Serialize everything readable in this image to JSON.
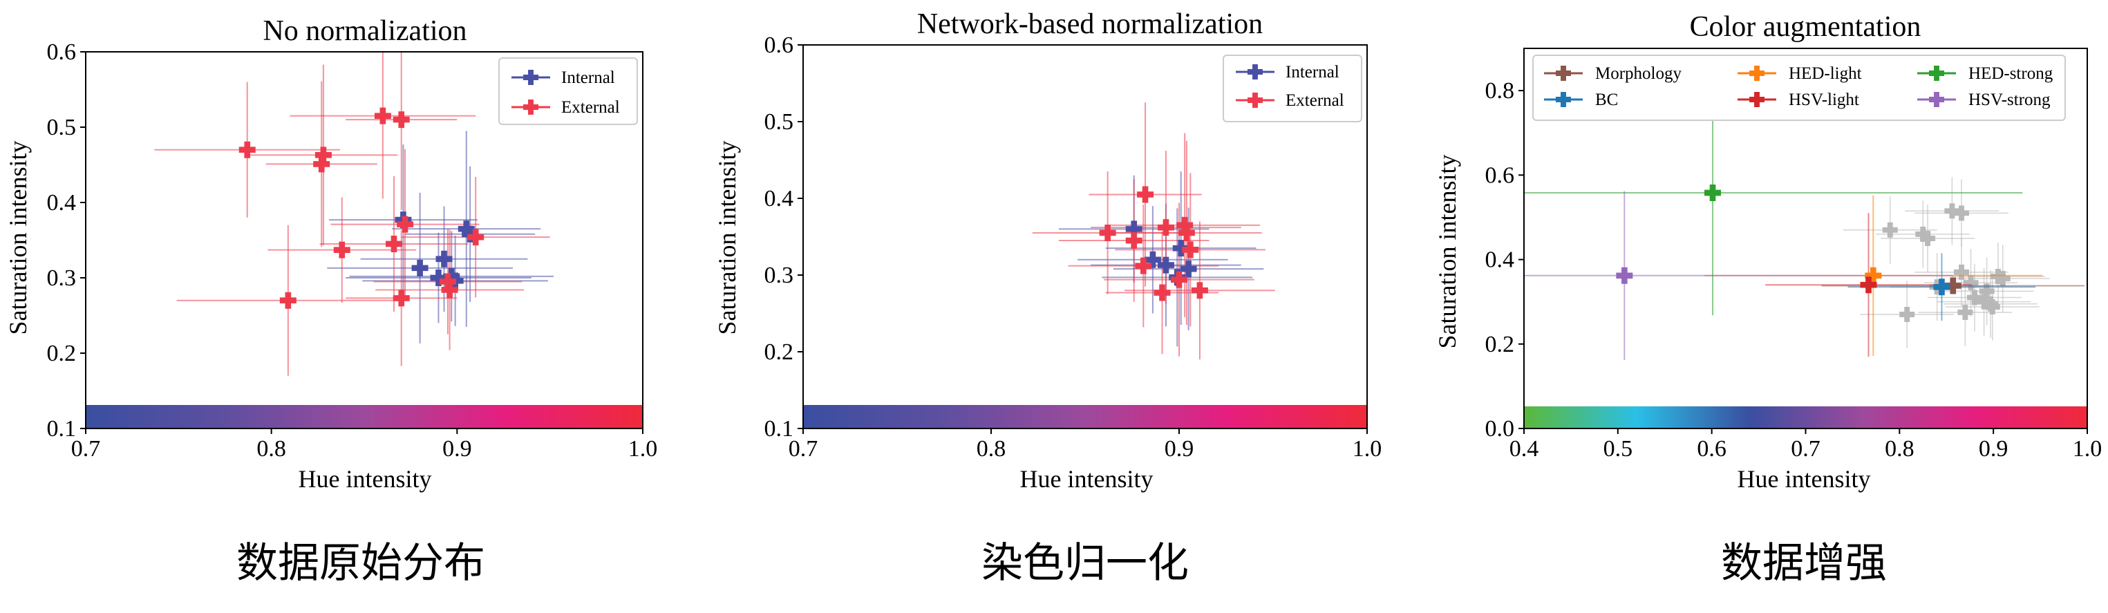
{
  "colors": {
    "internal": "#4a4fa6",
    "external": "#ee3b4c",
    "morphology": "#8c564b",
    "bc": "#1f77b4",
    "hed_light": "#ff7f0e",
    "hsv_light": "#d62728",
    "hed_strong": "#2ca02c",
    "hsv_strong": "#9467bd",
    "background_points": "#b8b8b8",
    "hue_strip_stops": [
      "#3a4fa0",
      "#5f4fa0",
      "#9d4a9c",
      "#e61e7f",
      "#ef2a3a"
    ],
    "wide_hue_strip_stops": [
      "#5cb83a",
      "#2bbfe6",
      "#3a4fa0",
      "#9d4a9c",
      "#e61e7f",
      "#ef2a3a"
    ]
  },
  "captions": [
    "数据原始分布",
    "染色归一化",
    "数据增强"
  ],
  "chart_data": [
    {
      "type": "scatter",
      "title": "No normalization",
      "xlabel": "Hue intensity",
      "ylabel": "Saturation intensity",
      "xlim": [
        0.7,
        1.0
      ],
      "ylim": [
        0.1,
        0.6
      ],
      "xticks": [
        "0.7",
        "0.8",
        "0.9",
        "1.0"
      ],
      "yticks": [
        "0.1",
        "0.2",
        "0.3",
        "0.4",
        "0.5",
        "0.6"
      ],
      "color_strip": "hue",
      "legend": "top-right",
      "grid": false,
      "series": [
        {
          "name": "Internal",
          "color_key": "internal",
          "points": [
            {
              "x": 0.871,
              "y": 0.377,
              "xerr": 0.04,
              "yerr": 0.1
            },
            {
              "x": 0.905,
              "y": 0.365,
              "xerr": 0.04,
              "yerr": 0.13
            },
            {
              "x": 0.907,
              "y": 0.358,
              "xerr": 0.035,
              "yerr": 0.09
            },
            {
              "x": 0.893,
              "y": 0.325,
              "xerr": 0.045,
              "yerr": 0.07
            },
            {
              "x": 0.88,
              "y": 0.313,
              "xerr": 0.05,
              "yerr": 0.1
            },
            {
              "x": 0.89,
              "y": 0.3,
              "xerr": 0.05,
              "yerr": 0.06
            },
            {
              "x": 0.897,
              "y": 0.302,
              "xerr": 0.055,
              "yerr": 0.06
            },
            {
              "x": 0.899,
              "y": 0.296,
              "xerr": 0.05,
              "yerr": 0.06
            }
          ]
        },
        {
          "name": "External",
          "color_key": "external",
          "points": [
            {
              "x": 0.787,
              "y": 0.47,
              "xerr": 0.05,
              "yerr": 0.09
            },
            {
              "x": 0.828,
              "y": 0.463,
              "xerr": 0.04,
              "yerr": 0.12
            },
            {
              "x": 0.827,
              "y": 0.451,
              "xerr": 0.03,
              "yerr": 0.11
            },
            {
              "x": 0.86,
              "y": 0.515,
              "xerr": 0.05,
              "yerr": 0.11
            },
            {
              "x": 0.87,
              "y": 0.51,
              "xerr": 0.03,
              "yerr": 0.12
            },
            {
              "x": 0.872,
              "y": 0.371,
              "xerr": 0.04,
              "yerr": 0.1
            },
            {
              "x": 0.91,
              "y": 0.354,
              "xerr": 0.04,
              "yerr": 0.08
            },
            {
              "x": 0.866,
              "y": 0.345,
              "xerr": 0.04,
              "yerr": 0.09
            },
            {
              "x": 0.838,
              "y": 0.337,
              "xerr": 0.04,
              "yerr": 0.07
            },
            {
              "x": 0.895,
              "y": 0.295,
              "xerr": 0.04,
              "yerr": 0.07
            },
            {
              "x": 0.896,
              "y": 0.284,
              "xerr": 0.04,
              "yerr": 0.08
            },
            {
              "x": 0.87,
              "y": 0.273,
              "xerr": 0.03,
              "yerr": 0.09
            },
            {
              "x": 0.809,
              "y": 0.27,
              "xerr": 0.06,
              "yerr": 0.1
            }
          ]
        }
      ]
    },
    {
      "type": "scatter",
      "title": "Network-based normalization",
      "xlabel": "Hue intensity",
      "ylabel": "Saturation intensity",
      "xlim": [
        0.7,
        1.0
      ],
      "ylim": [
        0.1,
        0.6
      ],
      "xticks": [
        "0.7",
        "0.8",
        "0.9",
        "1.0"
      ],
      "yticks": [
        "0.1",
        "0.2",
        "0.3",
        "0.4",
        "0.5",
        "0.6"
      ],
      "color_strip": "hue",
      "legend": "top-right",
      "grid": false,
      "series": [
        {
          "name": "Internal",
          "color_key": "internal",
          "points": [
            {
              "x": 0.876,
              "y": 0.36,
              "xerr": 0.04,
              "yerr": 0.07
            },
            {
              "x": 0.901,
              "y": 0.335,
              "xerr": 0.04,
              "yerr": 0.1
            },
            {
              "x": 0.886,
              "y": 0.32,
              "xerr": 0.04,
              "yerr": 0.07
            },
            {
              "x": 0.893,
              "y": 0.313,
              "xerr": 0.04,
              "yerr": 0.08
            },
            {
              "x": 0.905,
              "y": 0.308,
              "xerr": 0.04,
              "yerr": 0.08
            },
            {
              "x": 0.899,
              "y": 0.297,
              "xerr": 0.04,
              "yerr": 0.09
            }
          ]
        },
        {
          "name": "External",
          "color_key": "external",
          "points": [
            {
              "x": 0.882,
              "y": 0.405,
              "xerr": 0.03,
              "yerr": 0.12
            },
            {
              "x": 0.862,
              "y": 0.355,
              "xerr": 0.04,
              "yerr": 0.08
            },
            {
              "x": 0.876,
              "y": 0.345,
              "xerr": 0.04,
              "yerr": 0.08
            },
            {
              "x": 0.893,
              "y": 0.362,
              "xerr": 0.04,
              "yerr": 0.1
            },
            {
              "x": 0.903,
              "y": 0.365,
              "xerr": 0.04,
              "yerr": 0.12
            },
            {
              "x": 0.904,
              "y": 0.355,
              "xerr": 0.04,
              "yerr": 0.12
            },
            {
              "x": 0.906,
              "y": 0.333,
              "xerr": 0.04,
              "yerr": 0.1
            },
            {
              "x": 0.881,
              "y": 0.312,
              "xerr": 0.04,
              "yerr": 0.08
            },
            {
              "x": 0.9,
              "y": 0.294,
              "xerr": 0.04,
              "yerr": 0.1
            },
            {
              "x": 0.891,
              "y": 0.277,
              "xerr": 0.03,
              "yerr": 0.08
            },
            {
              "x": 0.911,
              "y": 0.28,
              "xerr": 0.04,
              "yerr": 0.09
            }
          ]
        }
      ]
    },
    {
      "type": "scatter",
      "title": "Color augmentation",
      "xlabel": "Hue intensity",
      "ylabel": "Saturation intensity",
      "xlim": [
        0.4,
        1.0
      ],
      "ylim": [
        0.0,
        0.9
      ],
      "xticks": [
        "0.4",
        "0.5",
        "0.6",
        "0.7",
        "0.8",
        "0.9",
        "1.0"
      ],
      "yticks": [
        "0.0",
        "0.2",
        "0.4",
        "0.6",
        "0.8"
      ],
      "color_strip": "wide_hue",
      "legend": "top",
      "grid": false,
      "background_points": [
        {
          "x": 0.79,
          "y": 0.47
        },
        {
          "x": 0.825,
          "y": 0.46
        },
        {
          "x": 0.83,
          "y": 0.45
        },
        {
          "x": 0.856,
          "y": 0.515
        },
        {
          "x": 0.866,
          "y": 0.51
        },
        {
          "x": 0.866,
          "y": 0.37
        },
        {
          "x": 0.905,
          "y": 0.36
        },
        {
          "x": 0.91,
          "y": 0.355
        },
        {
          "x": 0.84,
          "y": 0.335
        },
        {
          "x": 0.876,
          "y": 0.345
        },
        {
          "x": 0.893,
          "y": 0.325
        },
        {
          "x": 0.88,
          "y": 0.31
        },
        {
          "x": 0.89,
          "y": 0.3
        },
        {
          "x": 0.897,
          "y": 0.295
        },
        {
          "x": 0.899,
          "y": 0.288
        },
        {
          "x": 0.87,
          "y": 0.275
        },
        {
          "x": 0.808,
          "y": 0.27
        }
      ],
      "series": [
        {
          "name": "Morphology",
          "color_key": "morphology",
          "points": [
            {
              "x": 0.857,
              "y": 0.338,
              "xerr": 0.14,
              "yerr": 0.02
            }
          ]
        },
        {
          "name": "BC",
          "color_key": "bc",
          "points": [
            {
              "x": 0.845,
              "y": 0.335,
              "xerr": 0.1,
              "yerr": 0.08
            }
          ]
        },
        {
          "name": "HED-light",
          "color_key": "hed_light",
          "points": [
            {
              "x": 0.772,
              "y": 0.362,
              "xerr": 0.18,
              "yerr": 0.19
            }
          ]
        },
        {
          "name": "HSV-light",
          "color_key": "hsv_light",
          "points": [
            {
              "x": 0.767,
              "y": 0.34,
              "xerr": 0.11,
              "yerr": 0.17
            }
          ]
        },
        {
          "name": "HED-strong",
          "color_key": "hed_strong",
          "points": [
            {
              "x": 0.601,
              "y": 0.558,
              "xerr": 0.33,
              "yerr": 0.29
            }
          ]
        },
        {
          "name": "HSV-strong",
          "color_key": "hsv_strong",
          "points": [
            {
              "x": 0.507,
              "y": 0.362,
              "xerr": 0.35,
              "yerr": 0.2
            }
          ]
        }
      ]
    }
  ]
}
